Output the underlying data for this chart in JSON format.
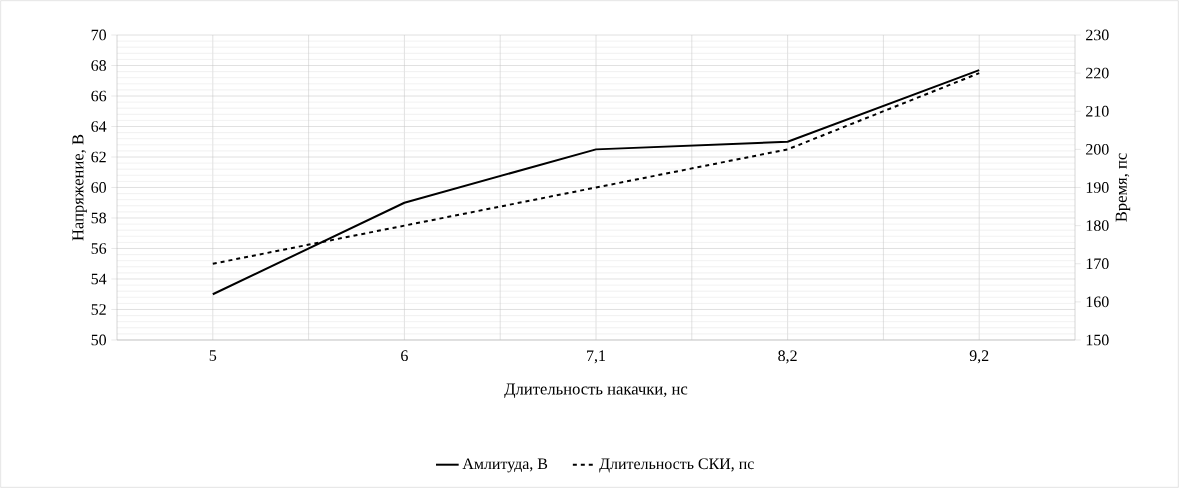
{
  "chart_data": {
    "type": "line",
    "xlabel": "Длительность накачки, нс",
    "ylabel": "Напряжение, В",
    "y2label": "Время, пс",
    "categories": [
      "5",
      "6",
      "7,1",
      "8,2",
      "9,2"
    ],
    "series": [
      {
        "name": "Амлитуда, В",
        "color": "#000000",
        "line_style": "solid",
        "values": [
          53,
          59,
          62.5,
          63,
          67.7
        ]
      },
      {
        "name": "Длительность СКИ, пс",
        "color": "#000000",
        "line_style": "dashed",
        "axis": "y2",
        "values": [
          170,
          180,
          190,
          200,
          220
        ]
      }
    ],
    "ylim": [
      50,
      70
    ],
    "yticks": [
      50,
      52,
      54,
      56,
      58,
      60,
      62,
      64,
      66,
      68,
      70
    ],
    "y2lim": [
      150,
      230
    ],
    "y2ticks": [
      150,
      160,
      170,
      180,
      190,
      200,
      210,
      220,
      230
    ],
    "grid": true,
    "legend": "bottom",
    "marker": "none"
  }
}
